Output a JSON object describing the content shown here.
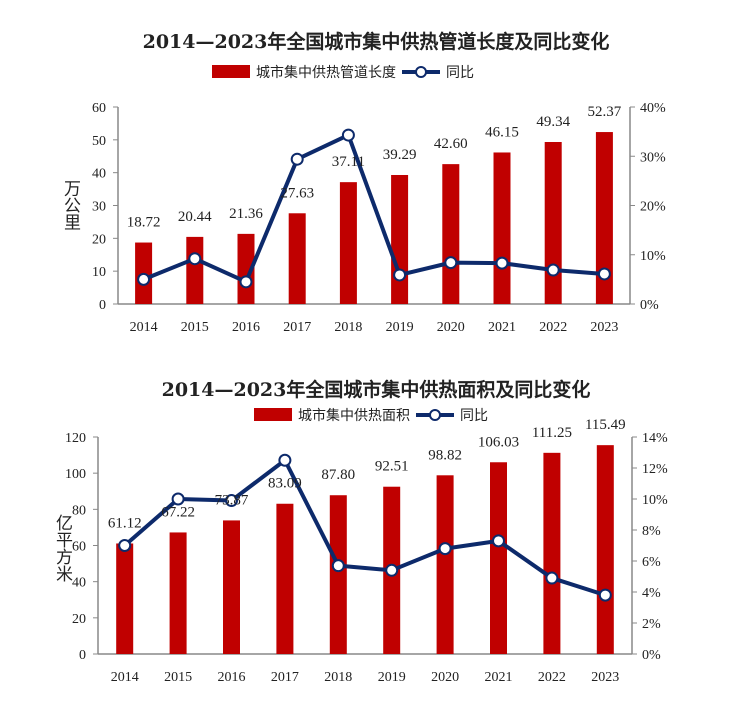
{
  "chart_data": [
    {
      "type": "bar+line",
      "title": "2014—2023年全国城市集中供热管道长度及同比变化",
      "categories": [
        "2014",
        "2015",
        "2016",
        "2017",
        "2018",
        "2019",
        "2020",
        "2021",
        "2022",
        "2023"
      ],
      "series": [
        {
          "name": "城市集中供热管道长度",
          "type": "bar",
          "axis": "left",
          "color": "#c00000",
          "values": [
            18.72,
            20.44,
            21.36,
            27.63,
            37.11,
            39.29,
            42.6,
            46.15,
            49.34,
            52.37
          ],
          "labels": [
            "18.72",
            "20.44",
            "21.36",
            "27.63",
            "37.11",
            "39.29",
            "42.60",
            "46.15",
            "49.34",
            "52.37"
          ]
        },
        {
          "name": "同比",
          "type": "line",
          "axis": "right",
          "color": "#0d2a6b",
          "values": [
            5.0,
            9.2,
            4.5,
            29.4,
            34.3,
            5.9,
            8.4,
            8.3,
            6.9,
            6.1
          ]
        }
      ],
      "ylabel": "万公里",
      "ylim": [
        0,
        60
      ],
      "yticks": [
        "0",
        "10",
        "20",
        "30",
        "40",
        "50",
        "60"
      ],
      "y2lim": [
        0,
        40
      ],
      "y2ticks": [
        "0%",
        "10%",
        "20%",
        "30%",
        "40%"
      ],
      "grid": false,
      "legend": "top"
    },
    {
      "type": "bar+line",
      "title": "2014—2023年全国城市集中供热面积及同比变化",
      "categories": [
        "2014",
        "2015",
        "2016",
        "2017",
        "2018",
        "2019",
        "2020",
        "2021",
        "2022",
        "2023"
      ],
      "series": [
        {
          "name": "城市集中供热面积",
          "type": "bar",
          "axis": "left",
          "color": "#c00000",
          "values": [
            61.12,
            67.22,
            73.87,
            83.09,
            87.8,
            92.51,
            98.82,
            106.03,
            111.25,
            115.49
          ],
          "labels": [
            "61.12",
            "67.22",
            "73.87",
            "83.09",
            "87.80",
            "92.51",
            "98.82",
            "106.03",
            "111.25",
            "115.49"
          ]
        },
        {
          "name": "同比",
          "type": "line",
          "axis": "right",
          "color": "#0d2a6b",
          "values": [
            7.0,
            10.0,
            9.9,
            12.5,
            5.7,
            5.4,
            6.8,
            7.3,
            4.9,
            3.8
          ]
        }
      ],
      "ylabel": "亿平方米",
      "ylim": [
        0,
        120
      ],
      "yticks": [
        "0",
        "20",
        "40",
        "60",
        "80",
        "100",
        "120"
      ],
      "y2lim": [
        0,
        14
      ],
      "y2ticks": [
        "0%",
        "2%",
        "4%",
        "6%",
        "8%",
        "10%",
        "12%",
        "14%"
      ],
      "grid": false,
      "legend": "top"
    }
  ]
}
